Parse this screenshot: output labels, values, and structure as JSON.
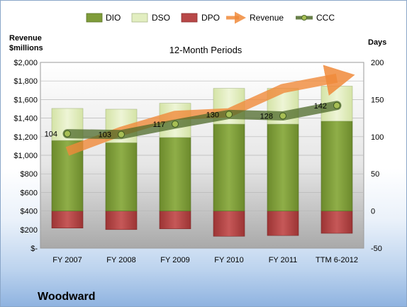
{
  "chart_data": {
    "type": "bar",
    "subtitle": "12-Month Periods",
    "company": "Woodward",
    "left_axis": {
      "label_line1": "Revenue",
      "label_line2": "$millions",
      "range": [
        0,
        2000
      ],
      "ticks": [
        "$-",
        "$200",
        "$400",
        "$600",
        "$800",
        "$1,000",
        "$1,200",
        "$1,400",
        "$1,600",
        "$1,800",
        "$2,000"
      ]
    },
    "right_axis": {
      "label": "Days",
      "range": [
        -50,
        200
      ],
      "ticks": [
        "-50",
        "0",
        "50",
        "100",
        "150",
        "200"
      ]
    },
    "categories": [
      "FY 2007",
      "FY 2008",
      "FY 2009",
      "FY 2010",
      "FY 2011",
      "TTM 6-2012"
    ],
    "series": [
      {
        "name": "DIO",
        "axis": "days",
        "values": [
          95,
          92,
          99,
          117,
          117,
          121
        ],
        "color": "#7f9c3a"
      },
      {
        "name": "DSO",
        "axis": "days",
        "values": [
          43,
          45,
          46,
          48,
          48,
          47
        ],
        "color": "#e2eec0"
      },
      {
        "name": "DPO",
        "axis": "days",
        "values": [
          -23,
          -25,
          -24,
          -34,
          -33,
          -30
        ],
        "color": "#b84848"
      },
      {
        "name": "Revenue",
        "axis": "revenue",
        "values": [
          1042,
          1258,
          1430,
          1457,
          1720,
          1830
        ],
        "color": "#f08a3a"
      },
      {
        "name": "CCC",
        "axis": "days",
        "values": [
          104,
          103,
          117,
          130,
          128,
          142
        ],
        "color": "#4e6a2a"
      }
    ],
    "ccc_labels": [
      "104",
      "103",
      "117",
      "130",
      "128",
      "142"
    ],
    "legend_position": "top",
    "grid": true
  }
}
